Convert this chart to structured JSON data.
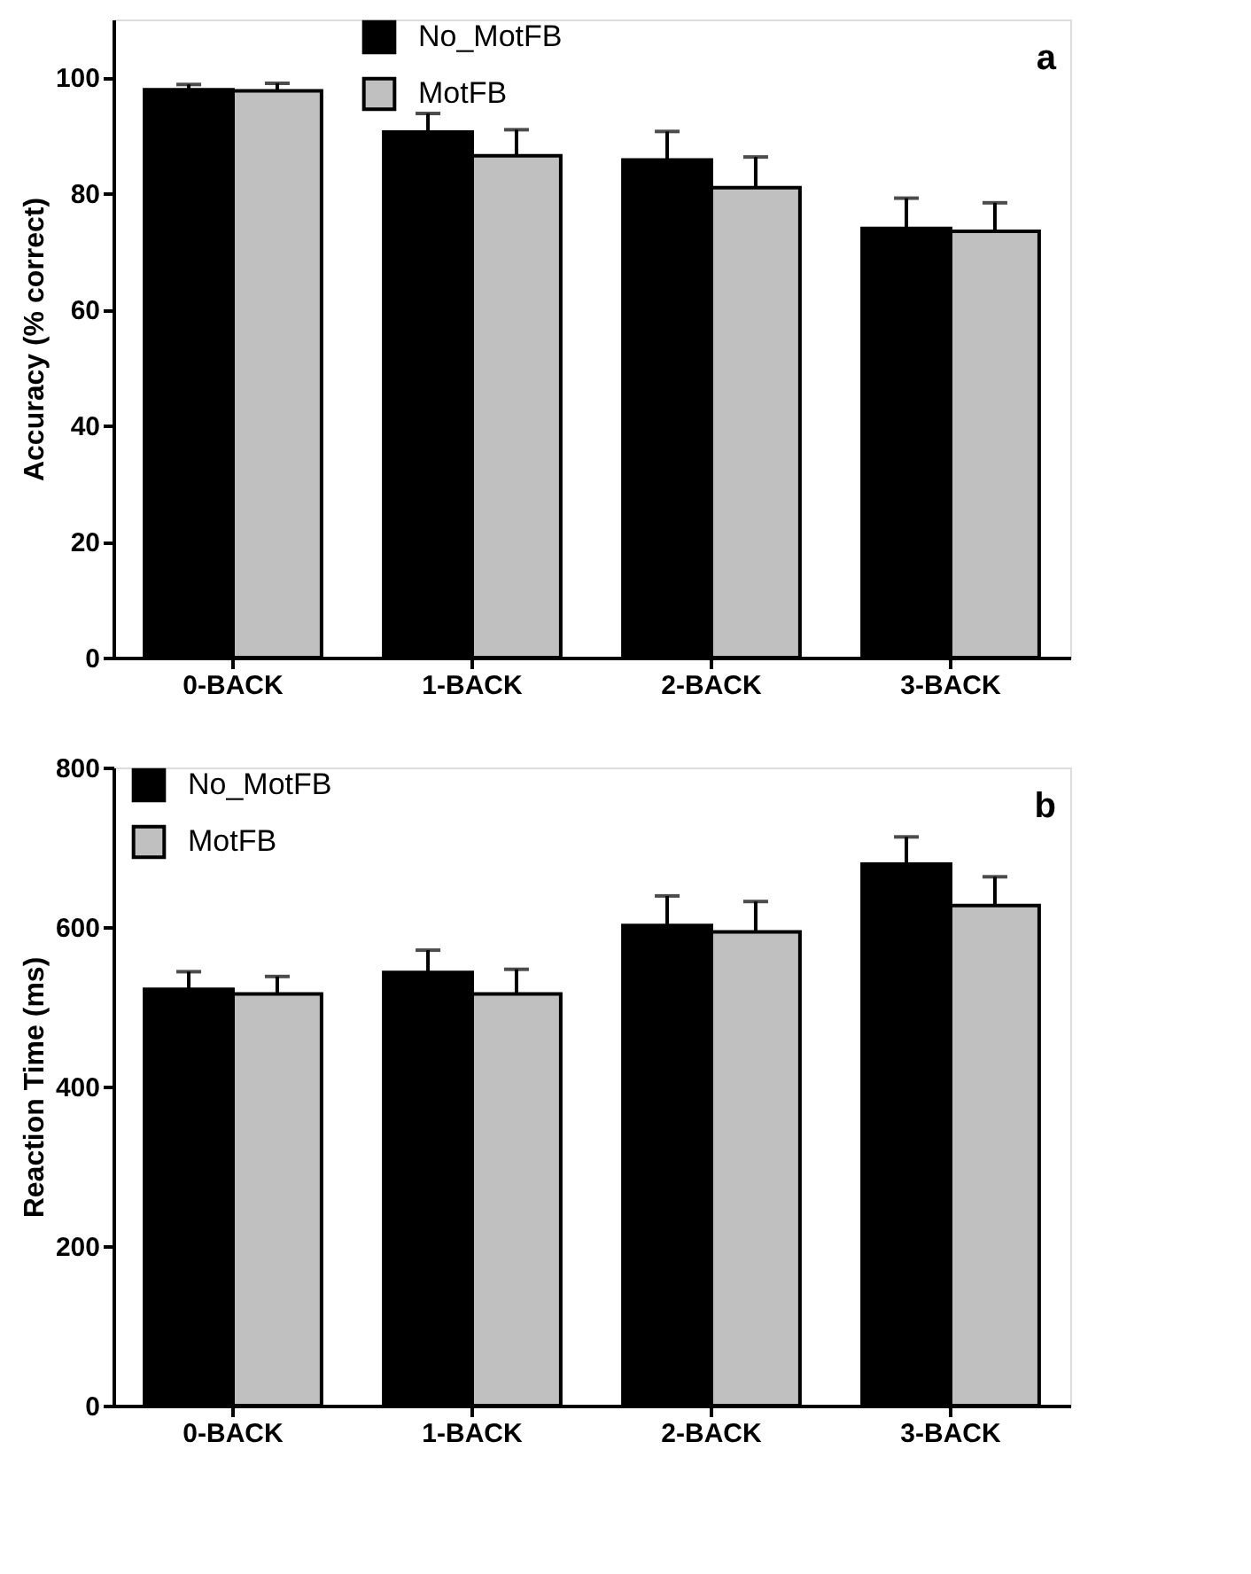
{
  "chart_data": [
    {
      "type": "bar",
      "ylabel": "Accuracy (% correct)",
      "categories": [
        "0-BACK",
        "1-BACK",
        "2-BACK",
        "3-BACK"
      ],
      "ylim": [
        0,
        110
      ],
      "yticks": [
        0,
        20,
        40,
        60,
        80,
        100
      ],
      "legend": "top",
      "annotations": [
        "a"
      ],
      "grid": false,
      "series": [
        {
          "name": "No_MotFB",
          "color": "#000000",
          "values": [
            97.9,
            90.6,
            85.8,
            74.0
          ],
          "errors": [
            [
              97.9,
              98.8
            ],
            [
              90.6,
              93.8
            ],
            [
              85.8,
              90.7
            ],
            [
              74.0,
              79.2
            ]
          ]
        },
        {
          "name": "MotFB",
          "color": "#c0c0c0",
          "values": [
            97.7,
            86.5,
            81.0,
            73.5
          ],
          "errors": [
            [
              97.7,
              99.0
            ],
            [
              86.5,
              91.0
            ],
            [
              81.0,
              86.3
            ],
            [
              73.5,
              78.4
            ]
          ]
        }
      ]
    },
    {
      "type": "bar",
      "ylabel": "Reaction Time (ms)",
      "categories": [
        "0-BACK",
        "1-BACK",
        "2-BACK",
        "3-BACK"
      ],
      "ylim": [
        0,
        800
      ],
      "yticks": [
        0,
        200,
        400,
        600,
        800
      ],
      "legend": "top left",
      "annotations": [
        "b"
      ],
      "grid": false,
      "series": [
        {
          "name": "No_MotFB",
          "color": "#000000",
          "values": [
            522,
            543,
            602,
            679
          ],
          "errors": [
            [
              522,
              544
            ],
            [
              543,
              571
            ],
            [
              602,
              639
            ],
            [
              679,
              713
            ]
          ]
        },
        {
          "name": "MotFB",
          "color": "#c0c0c0",
          "values": [
            516,
            516,
            594,
            627
          ],
          "errors": [
            [
              516,
              538
            ],
            [
              516,
              547
            ],
            [
              594,
              632
            ],
            [
              627,
              663
            ]
          ]
        }
      ]
    }
  ]
}
